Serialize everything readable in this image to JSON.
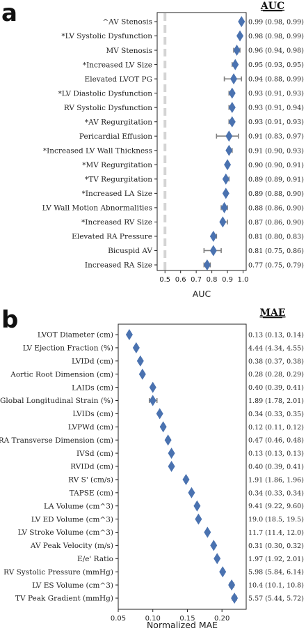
{
  "panels": [
    {
      "letter": "a",
      "metric_header": "AUC",
      "xlabel": "AUC"
    },
    {
      "letter": "b",
      "metric_header": "MAE",
      "xlabel": "Normalized MAE"
    }
  ],
  "chart_data": [
    {
      "type": "scatter",
      "subtype": "forest-plot",
      "xlabel": "AUC",
      "xlim": [
        0.45,
        1.02
      ],
      "xticks": [
        0.5,
        0.6,
        0.7,
        0.8,
        0.9,
        1.0
      ],
      "xtick_labels": [
        "0.5",
        "0.6",
        "0.7",
        "0.8",
        "0.9",
        "1.0"
      ],
      "reference_line": 0.5,
      "marker": "diamond",
      "marker_color": "#4a72b0",
      "errorbar_color": "#7f7f7f",
      "reference_line_color": "#d4d4d4",
      "rows": [
        {
          "label": "^AV Stenosis",
          "value": 0.99,
          "lo": 0.98,
          "hi": 0.99,
          "ci": "0.99 (0.98, 0.99)"
        },
        {
          "label": "*LV Systolic Dysfunction",
          "value": 0.98,
          "lo": 0.98,
          "hi": 0.99,
          "ci": "0.98 (0.98, 0.99)"
        },
        {
          "label": "MV Stenosis",
          "value": 0.96,
          "lo": 0.94,
          "hi": 0.98,
          "ci": "0.96 (0.94, 0.98)"
        },
        {
          "label": "*Increased LV Size",
          "value": 0.95,
          "lo": 0.93,
          "hi": 0.95,
          "ci": "0.95 (0.93, 0.95)"
        },
        {
          "label": "Elevated LVOT PG",
          "value": 0.94,
          "lo": 0.88,
          "hi": 0.99,
          "ci": "0.94 (0.88, 0.99)"
        },
        {
          "label": "*LV Diastolic Dysfunction",
          "value": 0.93,
          "lo": 0.91,
          "hi": 0.93,
          "ci": "0.93 (0.91, 0.93)"
        },
        {
          "label": "RV Systolic Dysfunction",
          "value": 0.93,
          "lo": 0.91,
          "hi": 0.94,
          "ci": "0.93 (0.91, 0.94)"
        },
        {
          "label": "*AV Regurgitation",
          "value": 0.93,
          "lo": 0.91,
          "hi": 0.93,
          "ci": "0.93 (0.91, 0.93)"
        },
        {
          "label": "Pericardial Effusion",
          "value": 0.91,
          "lo": 0.83,
          "hi": 0.97,
          "ci": "0.91 (0.83, 0.97)"
        },
        {
          "label": "*Increased LV Wall Thickness",
          "value": 0.91,
          "lo": 0.9,
          "hi": 0.93,
          "ci": "0.91 (0.90, 0.93)"
        },
        {
          "label": "*MV Regurgitation",
          "value": 0.9,
          "lo": 0.9,
          "hi": 0.91,
          "ci": "0.90 (0.90, 0.91)"
        },
        {
          "label": "*TV Regurgitation",
          "value": 0.89,
          "lo": 0.89,
          "hi": 0.91,
          "ci": "0.89 (0.89, 0.91)"
        },
        {
          "label": "*Increased LA Size",
          "value": 0.89,
          "lo": 0.88,
          "hi": 0.9,
          "ci": "0.89 (0.88, 0.90)"
        },
        {
          "label": "LV Wall Motion Abnormalities",
          "value": 0.88,
          "lo": 0.86,
          "hi": 0.9,
          "ci": "0.88 (0.86, 0.90)"
        },
        {
          "label": "*Increased RV Size",
          "value": 0.87,
          "lo": 0.86,
          "hi": 0.9,
          "ci": "0.87 (0.86, 0.90)"
        },
        {
          "label": "Elevated RA Pressure",
          "value": 0.81,
          "lo": 0.8,
          "hi": 0.83,
          "ci": "0.81 (0.80, 0.83)"
        },
        {
          "label": "Bicuspid AV",
          "value": 0.81,
          "lo": 0.75,
          "hi": 0.86,
          "ci": "0.81 (0.75, 0.86)"
        },
        {
          "label": "Increased RA Size",
          "value": 0.77,
          "lo": 0.75,
          "hi": 0.79,
          "ci": "0.77 (0.75, 0.79)"
        }
      ]
    },
    {
      "type": "scatter",
      "subtype": "forest-plot",
      "xlabel": "Normalized MAE",
      "xlim": [
        0.05,
        0.235
      ],
      "xticks": [
        0.05,
        0.1,
        0.15,
        0.2
      ],
      "xtick_labels": [
        "0.05",
        "0.10",
        "0.15",
        "0.20"
      ],
      "marker": "diamond",
      "marker_color": "#4a72b0",
      "errorbar_color": "#7f7f7f",
      "rows": [
        {
          "label": "LVOT Diameter (cm)",
          "value": 0.066,
          "lo": 0.064,
          "hi": 0.068,
          "ci": "0.13 (0.13, 0.14)"
        },
        {
          "label": "LV Ejection Fraction (%)",
          "value": 0.076,
          "lo": 0.074,
          "hi": 0.078,
          "ci": "4.44 (4.34, 4.55)"
        },
        {
          "label": "LVIDd (cm)",
          "value": 0.082,
          "lo": 0.08,
          "hi": 0.084,
          "ci": "0.38 (0.37, 0.38)"
        },
        {
          "label": "Aortic Root Dimension (cm)",
          "value": 0.085,
          "lo": 0.083,
          "hi": 0.087,
          "ci": "0.28 (0.28, 0.29)"
        },
        {
          "label": "LAIDs (cm)",
          "value": 0.1,
          "lo": 0.098,
          "hi": 0.102,
          "ci": "0.40 (0.39, 0.41)"
        },
        {
          "label": "Global Longitudinal Strain (%)",
          "value": 0.1,
          "lo": 0.095,
          "hi": 0.106,
          "ci": "1.89 (1.78, 2.01)"
        },
        {
          "label": "LVIDs (cm)",
          "value": 0.11,
          "lo": 0.108,
          "hi": 0.112,
          "ci": "0.34 (0.33, 0.35)"
        },
        {
          "label": "LVPWd (cm)",
          "value": 0.115,
          "lo": 0.113,
          "hi": 0.117,
          "ci": "0.12 (0.11, 0.12)"
        },
        {
          "label": "RA Transverse Dimension (cm)",
          "value": 0.122,
          "lo": 0.12,
          "hi": 0.124,
          "ci": "0.47 (0.46, 0.48)"
        },
        {
          "label": "IVSd (cm)",
          "value": 0.127,
          "lo": 0.125,
          "hi": 0.129,
          "ci": "0.13 (0.13, 0.13)"
        },
        {
          "label": "RVIDd (cm)",
          "value": 0.127,
          "lo": 0.125,
          "hi": 0.129,
          "ci": "0.40 (0.39, 0.41)"
        },
        {
          "label": "RV S' (cm/s)",
          "value": 0.148,
          "lo": 0.146,
          "hi": 0.15,
          "ci": "1.91 (1.86, 1.96)"
        },
        {
          "label": "TAPSE (cm)",
          "value": 0.156,
          "lo": 0.154,
          "hi": 0.158,
          "ci": "0.34 (0.33, 0.34)"
        },
        {
          "label": "LA Volume (cm^3)",
          "value": 0.164,
          "lo": 0.162,
          "hi": 0.166,
          "ci": "9.41 (9.22, 9.60)"
        },
        {
          "label": "LV ED Volume (cm^3)",
          "value": 0.166,
          "lo": 0.164,
          "hi": 0.168,
          "ci": "19.0 (18.5, 19.5)"
        },
        {
          "label": "LV Stroke Volume (cm^3)",
          "value": 0.179,
          "lo": 0.177,
          "hi": 0.181,
          "ci": "11.7 (11.4, 12.0)"
        },
        {
          "label": "AV Peak Velocity (m/s)",
          "value": 0.188,
          "lo": 0.186,
          "hi": 0.19,
          "ci": "0.31 (0.30, 0.32)"
        },
        {
          "label": "E/e' Ratio",
          "value": 0.193,
          "lo": 0.191,
          "hi": 0.195,
          "ci": "1.97 (1.92, 2.01)"
        },
        {
          "label": "RV Systolic Pressure (mmHg)",
          "value": 0.201,
          "lo": 0.199,
          "hi": 0.203,
          "ci": "5.98 (5.84, 6.14)"
        },
        {
          "label": "LV ES Volume (cm^3)",
          "value": 0.214,
          "lo": 0.211,
          "hi": 0.217,
          "ci": "10.4 (10.1, 10.8)"
        },
        {
          "label": "TV Peak Gradient (mmHg)",
          "value": 0.218,
          "lo": 0.215,
          "hi": 0.221,
          "ci": "5.57 (5.44, 5.72)"
        }
      ]
    }
  ]
}
